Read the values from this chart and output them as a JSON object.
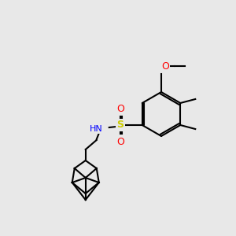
{
  "bg_color": "#e8e8e8",
  "figsize": [
    3.0,
    3.0
  ],
  "dpi": 100,
  "bond_color": "#000000",
  "bond_width": 1.5,
  "colors": {
    "O": "#ff0000",
    "S": "#cccc00",
    "N": "#0000ff",
    "H": "#888888",
    "C": "#000000"
  }
}
